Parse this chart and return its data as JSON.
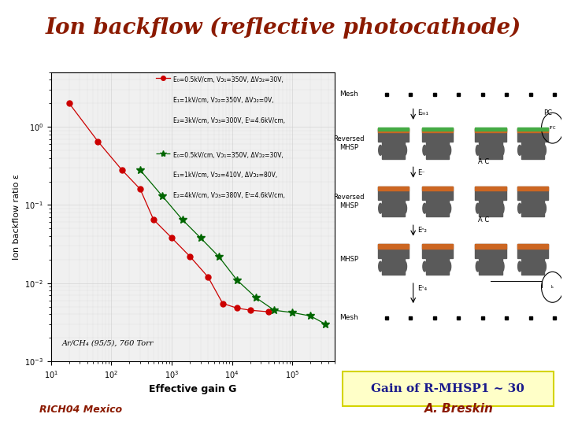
{
  "title": "Ion backflow (reflective photocathode)",
  "title_color": "#8B1A00",
  "title_fontsize": 20,
  "bg_color": "#ffffff",
  "red_x": [
    20,
    60,
    150,
    300,
    500,
    1000,
    2000,
    4000,
    7000,
    12000,
    20000,
    40000
  ],
  "red_y": [
    2.0,
    0.65,
    0.28,
    0.16,
    0.065,
    0.038,
    0.022,
    0.012,
    0.0055,
    0.0048,
    0.0045,
    0.0043
  ],
  "green_x": [
    300,
    700,
    1500,
    3000,
    6000,
    12000,
    25000,
    50000,
    100000,
    200000,
    350000
  ],
  "green_y": [
    0.28,
    0.13,
    0.065,
    0.038,
    0.022,
    0.011,
    0.0065,
    0.0045,
    0.0042,
    0.0038,
    0.003
  ],
  "red_label1": "E₀=0.5kV/cm, Vᴐ₁=350V, ΔVᴐ₂=30V,",
  "red_label2": "E₁=1kV/cm, Vᴐ₂=350V, ΔVᴐ₂=0V,",
  "red_label3": "E₂=3kV/cm, Vᴐ₃=300V, Eᴵ=4.6kV/cm,",
  "green_label1": "E₀=0.5kV/cm, Vᴐ₁=350V, ΔVᴐ₂=30V,",
  "green_label2": "E₁=1kV/cm, Vᴐ₂=410V, ΔVᴐ₂=80V,",
  "green_label3": "E₂=4kV/cm, Vᴐ₃=380V, Eᴵ=4.6kV/cm,",
  "xlabel": "Effective gain G",
  "ylabel": "Ion backflow ratio ε",
  "gas_label": "Ar/CH₄ (95/5), 760 Torr",
  "gain_text": "Gain of R-MHSP1 ~ 30",
  "footer_left": "RICH04 Mexico",
  "footer_right": "A. Breskin",
  "footer_color": "#8B1A00",
  "plot_bg": "#f0f0f0",
  "grid_color": "#cccccc",
  "gain_box_color": "#ffffc8",
  "gain_text_color": "#1a1a8c"
}
